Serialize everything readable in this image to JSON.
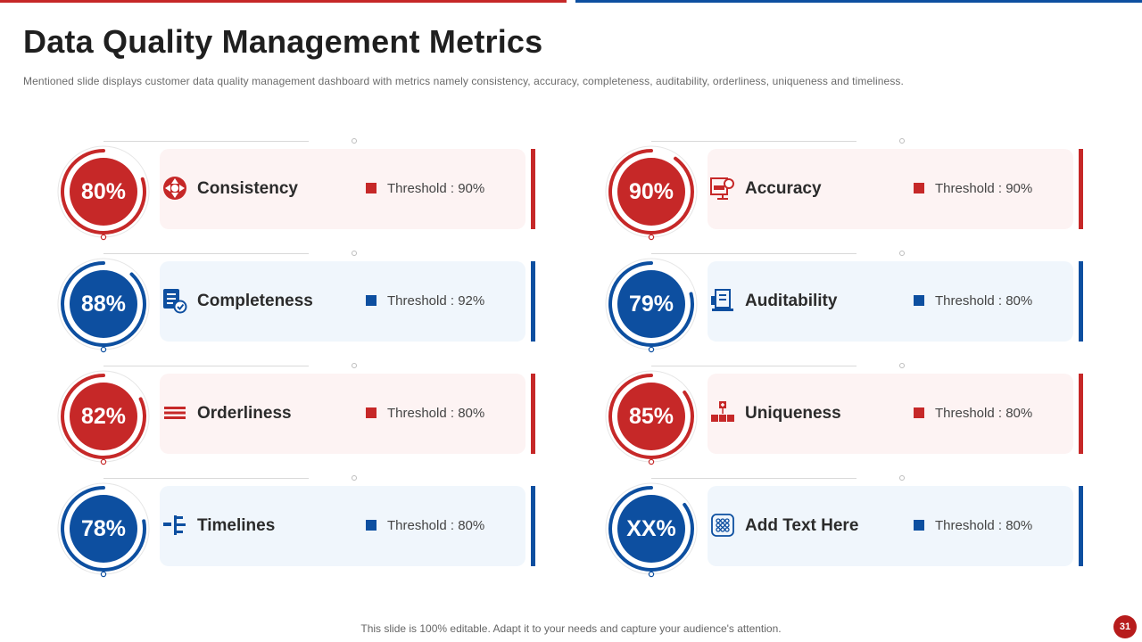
{
  "slide": {
    "title": "Data Quality Management Metrics",
    "subtitle": "Mentioned slide displays customer data quality management dashboard with metrics namely consistency, accuracy, completeness, auditability, orderliness, uniqueness and timeliness.",
    "footer": "This slide is 100% editable. Adapt it to your needs and capture your audience's attention.",
    "page_number": "31"
  },
  "colors": {
    "red": "#c62828",
    "blue": "#0d4fa0",
    "card_red": "#fdf3f3",
    "card_blue": "#f0f6fc"
  },
  "metrics": [
    {
      "value": "80%",
      "progress": 0.8,
      "label": "Consistency",
      "threshold": "Threshold : 90%",
      "theme": "red",
      "icon": "consistency-icon"
    },
    {
      "value": "88%",
      "progress": 0.88,
      "label": "Completeness",
      "threshold": "Threshold : 92%",
      "theme": "blue",
      "icon": "checklist-icon"
    },
    {
      "value": "82%",
      "progress": 0.82,
      "label": "Orderliness",
      "threshold": "Threshold : 80%",
      "theme": "red",
      "icon": "bars-icon"
    },
    {
      "value": "78%",
      "progress": 0.78,
      "label": "Timelines",
      "threshold": "Threshold : 80%",
      "theme": "blue",
      "icon": "tree-icon"
    },
    {
      "value": "90%",
      "progress": 0.9,
      "label": "Accuracy",
      "threshold": "Threshold : 90%",
      "theme": "red",
      "icon": "presentation-icon"
    },
    {
      "value": "79%",
      "progress": 0.79,
      "label": "Auditability",
      "threshold": "Threshold : 80%",
      "theme": "blue",
      "icon": "audit-icon"
    },
    {
      "value": "85%",
      "progress": 0.85,
      "label": "Uniqueness",
      "threshold": "Threshold : 80%",
      "theme": "red",
      "icon": "hierarchy-icon"
    },
    {
      "value": "XX%",
      "progress": 0.85,
      "label": "Add Text Here",
      "threshold": "Threshold : 80%",
      "theme": "blue",
      "icon": "keypad-icon"
    }
  ]
}
